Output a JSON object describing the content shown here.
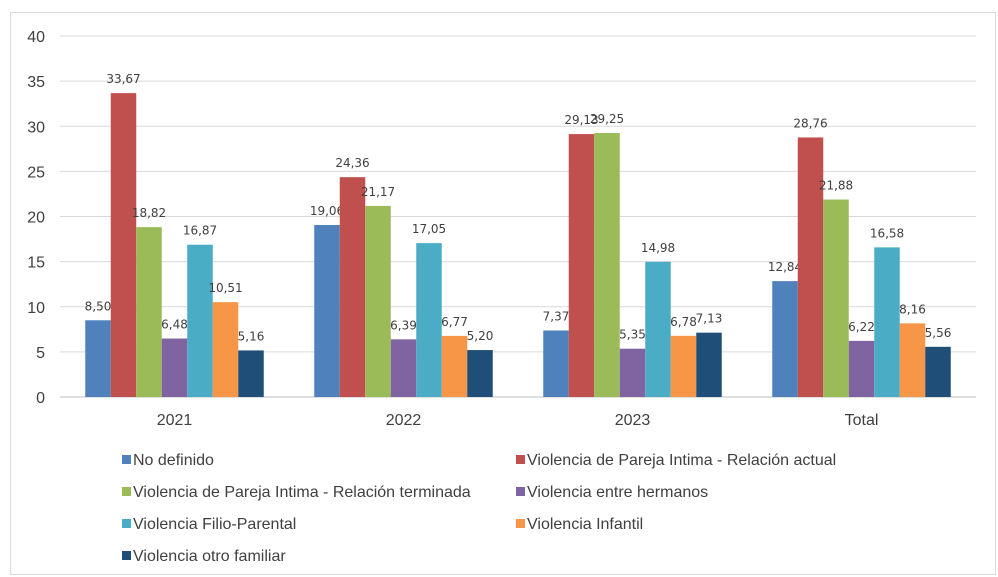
{
  "chart_data": {
    "type": "bar",
    "categories": [
      "2021",
      "2022",
      "2023",
      "Total"
    ],
    "ylim": [
      0,
      40
    ],
    "yticks": [
      0,
      5,
      10,
      15,
      20,
      25,
      30,
      35,
      40
    ],
    "grid": true,
    "legend_position": "bottom",
    "series": [
      {
        "name": "No definido",
        "color": "#4f81bd",
        "values": [
          8.5,
          19.06,
          7.37,
          12.84
        ],
        "labels": [
          "8,50",
          "19,06",
          "7,37",
          "12,84"
        ]
      },
      {
        "name": "Violencia de Pareja Intima - Relación actual",
        "color": "#c0504d",
        "values": [
          33.67,
          24.36,
          29.13,
          28.76
        ],
        "labels": [
          "33,67",
          "24,36",
          "29,13",
          "28,76"
        ]
      },
      {
        "name": "Violencia de Pareja Intima - Relación terminada",
        "color": "#9bbb59",
        "values": [
          18.82,
          21.17,
          29.25,
          21.88
        ],
        "labels": [
          "18,82",
          "21,17",
          "29,25",
          "21,88"
        ]
      },
      {
        "name": "Violencia entre hermanos",
        "color": "#8064a2",
        "values": [
          6.48,
          6.39,
          5.35,
          6.22
        ],
        "labels": [
          "6,48",
          "6,39",
          "5,35",
          "6,22"
        ]
      },
      {
        "name": "Violencia Filio-Parental",
        "color": "#4bacc6",
        "values": [
          16.87,
          17.05,
          14.98,
          16.58
        ],
        "labels": [
          "16,87",
          "17,05",
          "14,98",
          "16,58"
        ]
      },
      {
        "name": "Violencia Infantil",
        "color": "#f79646",
        "values": [
          10.51,
          6.77,
          6.78,
          8.16
        ],
        "labels": [
          "10,51",
          "6,77",
          "6,78",
          "8,16"
        ]
      },
      {
        "name": "Violencia otro familiar",
        "color": "#1f4e79",
        "values": [
          5.16,
          5.2,
          7.13,
          5.56
        ],
        "labels": [
          "5,16",
          "5,20",
          "7,13",
          "5,56"
        ]
      }
    ]
  }
}
